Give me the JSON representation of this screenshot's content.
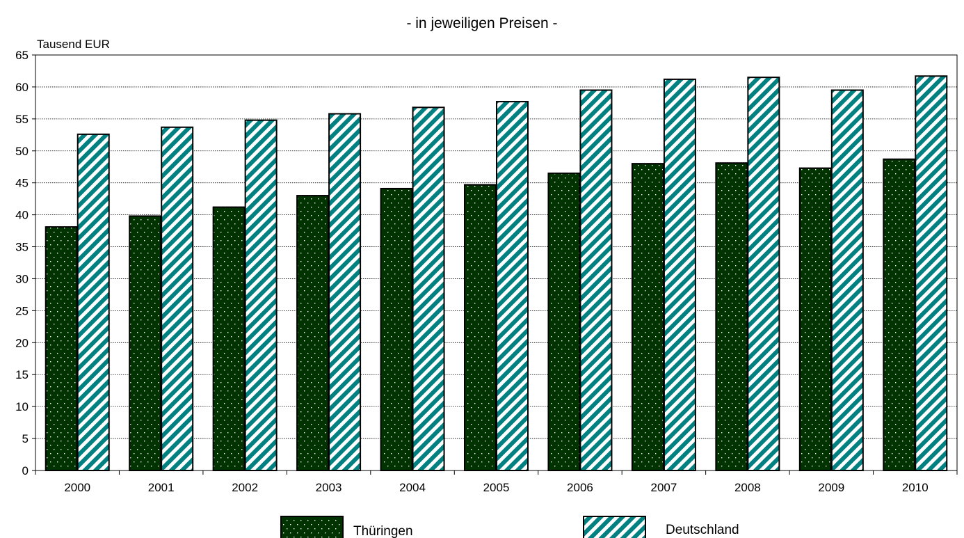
{
  "chart_data": {
    "type": "bar",
    "subtitle": "- in jeweiligen Preisen -",
    "ylabel": "Tausend EUR",
    "xlabel": "",
    "ylim": [
      0,
      65
    ],
    "ytick_step": 5,
    "grid": true,
    "legend_position": "bottom",
    "categories": [
      "2000",
      "2001",
      "2002",
      "2003",
      "2004",
      "2005",
      "2006",
      "2007",
      "2008",
      "2009",
      "2010"
    ],
    "series": [
      {
        "name": "Thüringen",
        "values": [
          38.1,
          39.8,
          41.2,
          43.0,
          44.1,
          44.7,
          46.5,
          48.0,
          48.1,
          47.3,
          48.7
        ],
        "color": "#003300",
        "pattern": "dots"
      },
      {
        "name": "Deutschland",
        "values": [
          52.6,
          53.7,
          54.8,
          55.8,
          56.8,
          57.7,
          59.5,
          61.2,
          61.5,
          59.5,
          61.7
        ],
        "color": "#008080",
        "pattern": "diagonal-stripes"
      }
    ]
  }
}
